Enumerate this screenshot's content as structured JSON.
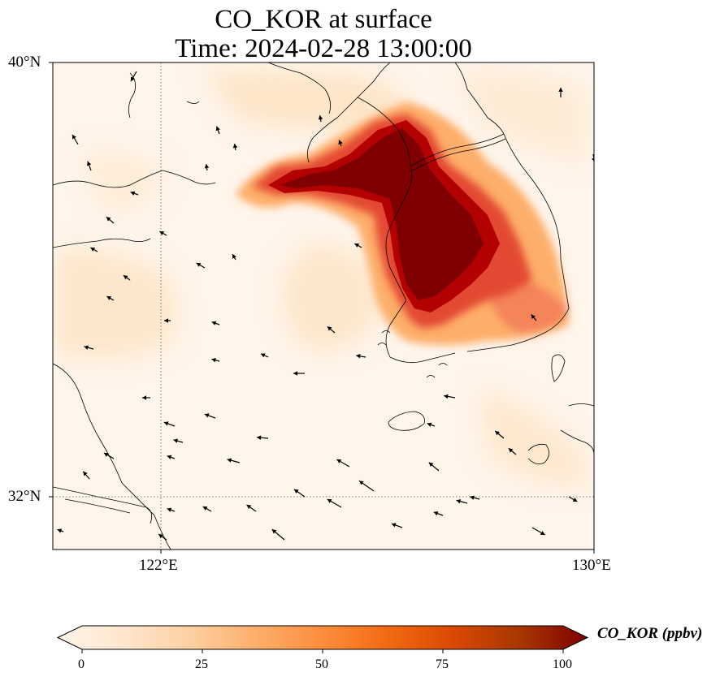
{
  "title": {
    "line1": "CO_KOR at surface",
    "line2": "Time: 2024-02-28 13:00:00"
  },
  "map": {
    "lon_range": [
      119.8,
      130.0
    ],
    "lat_range": [
      31.0,
      40.0
    ],
    "lat_ticks": [
      {
        "value": 40,
        "label": "40°N"
      },
      {
        "value": 32,
        "label": "32°N"
      }
    ],
    "lon_ticks": [
      {
        "value": 122,
        "label": "122°E"
      },
      {
        "value": 130,
        "label": "130°E"
      }
    ],
    "gridlines": {
      "lon": 122,
      "lat": 32,
      "style": "dotted"
    },
    "field_colors": {
      "background": "#fff5eb",
      "low": "#fde3c3",
      "mid": "#fdae6b",
      "high": "#e34a33",
      "max": "#7f0000"
    }
  },
  "colorbar": {
    "label": "CO_KOR (ppbv)",
    "min": 0,
    "max": 100,
    "ticks": [
      {
        "value": 0,
        "label": "0"
      },
      {
        "value": 25,
        "label": "25"
      },
      {
        "value": 50,
        "label": "50"
      },
      {
        "value": 75,
        "label": "75"
      },
      {
        "value": 100,
        "label": "100"
      }
    ],
    "extend": "both",
    "colormap": "OrRd",
    "stops": [
      "#fff5eb",
      "#fee6ce",
      "#fdd0a2",
      "#fdae6b",
      "#fd8d3c",
      "#f16913",
      "#d94801",
      "#a63603",
      "#7f0000"
    ]
  }
}
